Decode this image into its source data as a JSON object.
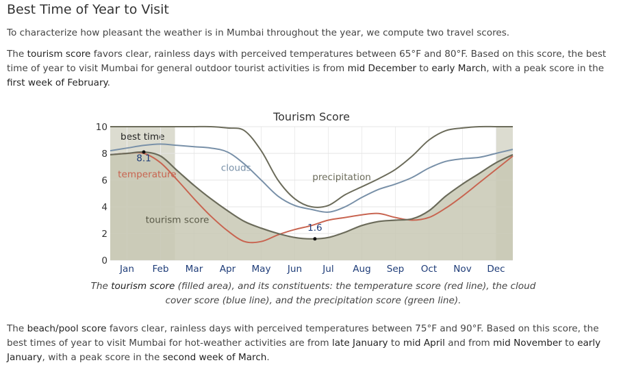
{
  "section_title": "Best Time of Year to Visit",
  "intro": "To characterize how pleasant the weather is in Mumbai throughout the year, we compute two travel scores.",
  "tourism_paragraph": {
    "p1": "The ",
    "b1": "tourism score",
    "p2": " favors clear, rainless days with perceived temperatures between 65°F and 80°F. Based on this score, the best time of year to visit Mumbai for general outdoor tourist activities is from ",
    "b2": "mid December",
    "p3": " to ",
    "b3": "early March",
    "p4": ", with a peak score in the ",
    "b4": "first week of February",
    "p5": "."
  },
  "caption": {
    "p1": "The ",
    "b1": "tourism score",
    "p2": " (filled area), and its constituents: the temperature score (red line), the cloud cover score (blue line), and the precipitation score (green line)."
  },
  "beach_paragraph": {
    "p1": "The ",
    "b1": "beach/pool score",
    "p2": " favors clear, rainless days with perceived temperatures between 75°F and 90°F. Based on this score, the best times of year to visit Mumbai for hot-weather activities are from ",
    "b2": "late January",
    "p3": " to ",
    "b3": "mid April",
    "p4": " and from ",
    "b4": "mid November",
    "p5": " to ",
    "b5": "early January",
    "p6": ", with a peak score in the ",
    "b6": "second week of March",
    "p7": "."
  },
  "colors": {
    "tourism_fill": "#c8c8b4",
    "tourism_line": "#6b6b5a",
    "temperature": "#c86450",
    "clouds": "#7890a8",
    "precipitation": "#6b6b5a",
    "best_time_band": "#dcdcd0",
    "value_label": "#1e3c78"
  },
  "chart_data": {
    "type": "area",
    "title": "Tourism Score",
    "ylim": [
      0,
      10
    ],
    "yticks": [
      "0",
      "2",
      "4",
      "6",
      "8",
      "10"
    ],
    "month_labels": [
      "Jan",
      "Feb",
      "Mar",
      "Apr",
      "May",
      "Jun",
      "Jul",
      "Aug",
      "Sep",
      "Oct",
      "Nov",
      "Dec"
    ],
    "best_time_label": "best time",
    "best_time_ranges": [
      [
        0,
        1.93
      ],
      [
        11.5,
        12
      ]
    ],
    "grid": true,
    "series": [
      {
        "name": "tourism score",
        "role": "area",
        "x": [
          0,
          0.5,
          1,
          1.5,
          2,
          2.5,
          3,
          3.5,
          4,
          4.5,
          5,
          5.5,
          6,
          6.5,
          7,
          7.5,
          8,
          8.5,
          9,
          9.5,
          10,
          10.5,
          11,
          11.5,
          12
        ],
        "y": [
          7.9,
          8.0,
          8.1,
          7.8,
          6.7,
          5.6,
          4.6,
          3.7,
          2.9,
          2.4,
          2.0,
          1.7,
          1.6,
          1.7,
          2.1,
          2.6,
          2.9,
          3.0,
          3.1,
          3.7,
          4.8,
          5.7,
          6.5,
          7.3,
          7.9
        ]
      },
      {
        "name": "temperature",
        "role": "line",
        "x": [
          0,
          0.5,
          1,
          1.5,
          2,
          2.5,
          3,
          3.5,
          4,
          4.5,
          5,
          5.5,
          6,
          6.5,
          7,
          7.5,
          8,
          8.5,
          9,
          9.5,
          10,
          10.5,
          11,
          11.5,
          12
        ],
        "y": [
          7.9,
          8.0,
          8.0,
          7.3,
          6.0,
          4.6,
          3.3,
          2.2,
          1.4,
          1.4,
          1.9,
          2.3,
          2.6,
          3.0,
          3.2,
          3.4,
          3.5,
          3.2,
          3.0,
          3.2,
          3.9,
          4.8,
          5.8,
          6.8,
          7.8
        ]
      },
      {
        "name": "clouds",
        "role": "line",
        "x": [
          0,
          0.5,
          1,
          1.5,
          2,
          2.5,
          3,
          3.5,
          4,
          4.5,
          5,
          5.5,
          6,
          6.5,
          7,
          7.5,
          8,
          8.5,
          9,
          9.5,
          10,
          10.5,
          11,
          11.5,
          12
        ],
        "y": [
          8.2,
          8.4,
          8.6,
          8.7,
          8.6,
          8.5,
          8.4,
          8.1,
          7.2,
          6.0,
          4.8,
          4.1,
          3.8,
          3.6,
          4.0,
          4.7,
          5.3,
          5.7,
          6.2,
          6.9,
          7.4,
          7.6,
          7.7,
          8.0,
          8.3
        ]
      },
      {
        "name": "precipitation",
        "role": "line",
        "x": [
          0,
          0.5,
          1,
          1.5,
          2,
          2.5,
          3,
          3.5,
          4,
          4.5,
          5,
          5.5,
          6,
          6.5,
          7,
          7.5,
          8,
          8.5,
          9,
          9.5,
          10,
          10.5,
          11,
          11.5,
          12
        ],
        "y": [
          10,
          10,
          10,
          10,
          10,
          10,
          10,
          9.9,
          9.7,
          8.2,
          6.0,
          4.6,
          4.0,
          4.1,
          4.9,
          5.5,
          6.1,
          6.8,
          7.8,
          9.0,
          9.7,
          9.9,
          10,
          10,
          10
        ]
      }
    ],
    "series_labels": [
      {
        "text": "temperature",
        "x": 1.1,
        "y": 6.2,
        "series": "temperature"
      },
      {
        "text": "clouds",
        "x": 3.75,
        "y": 6.7,
        "series": "clouds"
      },
      {
        "text": "precipitation",
        "x": 6.9,
        "y": 6.0,
        "series": "precipitation"
      },
      {
        "text": "tourism score",
        "x": 2.0,
        "y": 2.8,
        "series": "tourism score"
      }
    ],
    "annotations": [
      {
        "text": "8.1",
        "x": 1.0,
        "y": 8.1,
        "label_y": 7.4
      },
      {
        "text": "1.6",
        "x": 6.1,
        "y": 1.6,
        "label_y": 2.2
      }
    ]
  }
}
